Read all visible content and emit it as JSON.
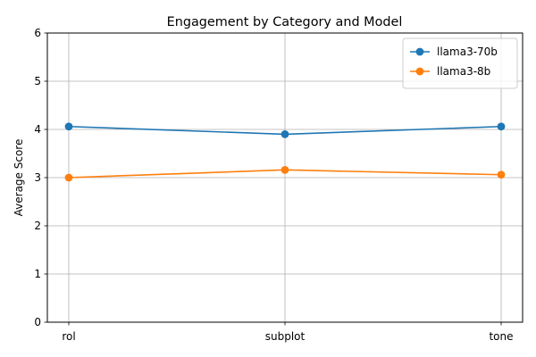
{
  "chart_data": {
    "type": "line",
    "title": "Engagement by Category and Model",
    "xlabel": "",
    "ylabel": "Average Score",
    "categories": [
      "rol",
      "subplot",
      "tone"
    ],
    "ylim": [
      0,
      6
    ],
    "yticks": [
      0,
      1,
      2,
      3,
      4,
      5,
      6
    ],
    "grid": true,
    "legend_position": "top-right",
    "series": [
      {
        "name": "llama3-70b",
        "color": "#1f77b4",
        "values": [
          4.06,
          3.9,
          4.06
        ]
      },
      {
        "name": "llama3-8b",
        "color": "#ff7f0e",
        "values": [
          3.0,
          3.16,
          3.06
        ]
      }
    ]
  }
}
